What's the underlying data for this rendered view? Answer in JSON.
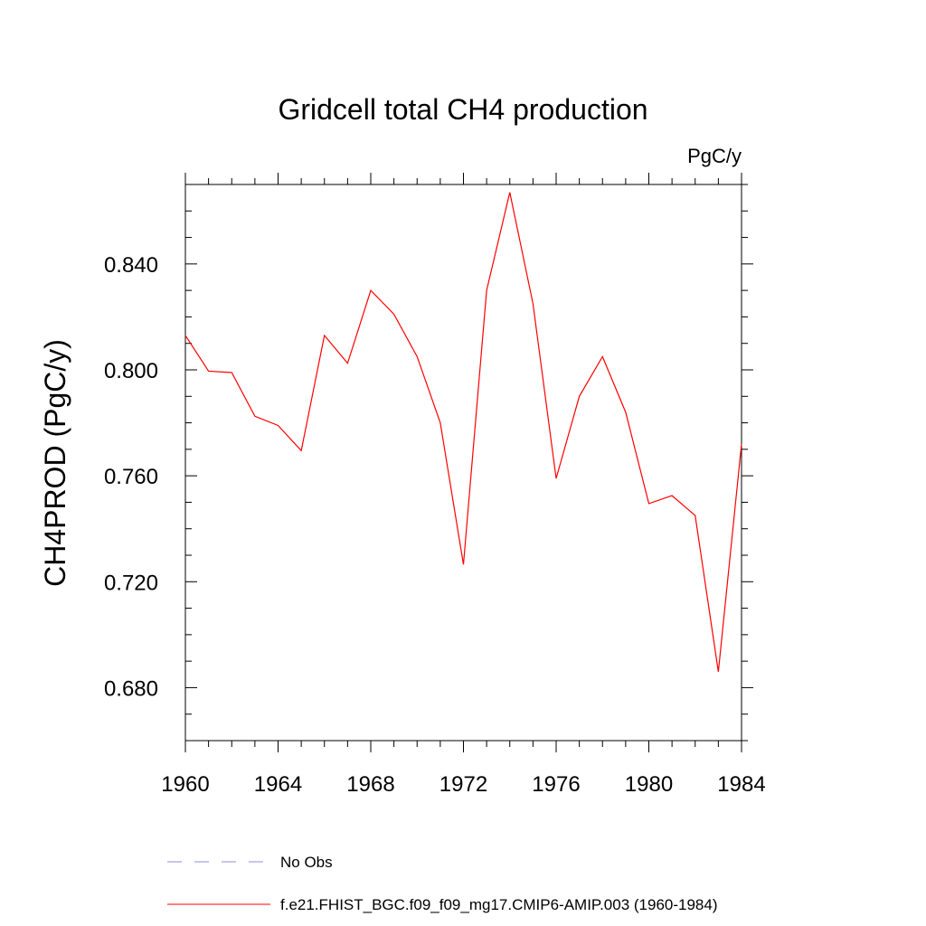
{
  "chart_data": {
    "type": "line",
    "title": "Gridcell total CH4 production",
    "units_label": "PgC/y",
    "xlabel": "",
    "ylabel": "CH4PROD  (PgC/y)",
    "xlim": [
      1960,
      1984
    ],
    "ylim": [
      0.66,
      0.87
    ],
    "x_ticks": [
      1960,
      1964,
      1968,
      1972,
      1976,
      1980,
      1984
    ],
    "x_tick_labels": [
      "1960",
      "1964",
      "1968",
      "1972",
      "1976",
      "1980",
      "1984"
    ],
    "y_ticks": [
      0.68,
      0.72,
      0.76,
      0.8,
      0.84
    ],
    "y_tick_labels": [
      "0.680",
      "0.720",
      "0.760",
      "0.800",
      "0.840"
    ],
    "grid": false,
    "legend_position": "bottom",
    "series": [
      {
        "name": "No Obs",
        "color": "#8c8cd8",
        "style": "dashed",
        "x": [],
        "values": []
      },
      {
        "name": "f.e21.FHIST_BGC.f09_f09_mg17.CMIP6-AMIP.003 (1960-1984)",
        "color": "#ff0000",
        "style": "solid",
        "x": [
          1960,
          1961,
          1962,
          1963,
          1964,
          1965,
          1966,
          1967,
          1968,
          1969,
          1970,
          1971,
          1972,
          1973,
          1974,
          1975,
          1976,
          1977,
          1978,
          1979,
          1980,
          1981,
          1982,
          1983,
          1984
        ],
        "values": [
          0.813,
          0.7995,
          0.799,
          0.7825,
          0.779,
          0.7695,
          0.813,
          0.8025,
          0.83,
          0.821,
          0.805,
          0.78,
          0.7265,
          0.83,
          0.867,
          0.825,
          0.759,
          0.79,
          0.805,
          0.784,
          0.7495,
          0.7525,
          0.745,
          0.686,
          0.772
        ]
      }
    ]
  }
}
